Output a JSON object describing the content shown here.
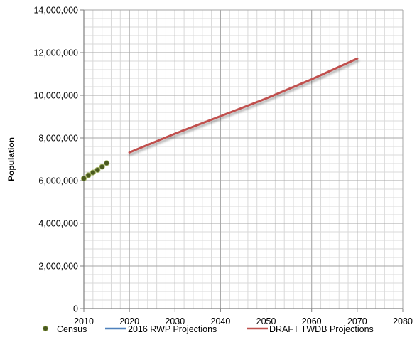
{
  "chart_data": {
    "type": "line",
    "title": "",
    "xlabel": "",
    "ylabel": "Population",
    "xlim": [
      2010,
      2080
    ],
    "ylim": [
      0,
      14000000
    ],
    "x_ticks": [
      2010,
      2020,
      2030,
      2040,
      2050,
      2060,
      2070,
      2080
    ],
    "y_ticks": [
      0,
      2000000,
      4000000,
      6000000,
      8000000,
      10000000,
      12000000,
      14000000
    ],
    "y_tick_labels": [
      "0",
      "2,000,000",
      "4,000,000",
      "6,000,000",
      "8,000,000",
      "10,000,000",
      "12,000,000",
      "14,000,000"
    ],
    "x_minor_grid_step": 2,
    "y_minor_grid_step": 400000,
    "grid": true,
    "legend_position": "bottom",
    "series": [
      {
        "name": "Census",
        "kind": "scatter",
        "color": "#4a5a1e",
        "x": [
          2010,
          2011,
          2012,
          2013,
          2014,
          2015
        ],
        "y": [
          6100000,
          6250000,
          6380000,
          6500000,
          6650000,
          6820000
        ]
      },
      {
        "name": "2016 RWP Projections",
        "kind": "line",
        "color": "#4f81bd",
        "x": [],
        "y": []
      },
      {
        "name": "DRAFT TWDB Projections",
        "kind": "line",
        "color": "#c0504d",
        "x": [
          2020,
          2030,
          2040,
          2050,
          2060,
          2070
        ],
        "y": [
          7320000,
          8200000,
          9020000,
          9850000,
          10750000,
          11720000
        ]
      }
    ]
  }
}
